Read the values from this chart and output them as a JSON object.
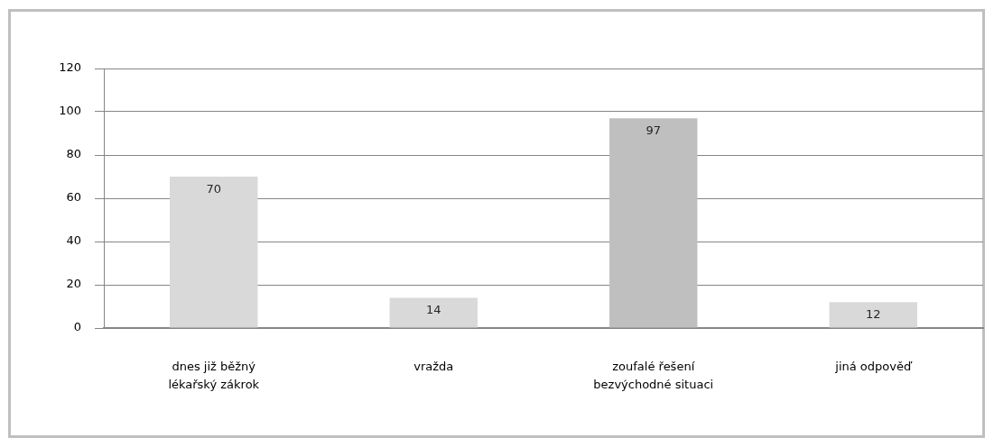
{
  "chart_data": {
    "type": "bar",
    "categories": [
      "dnes již běžný lékařský zákrok",
      "vražda",
      "zoufalé řešení bezvýchodné situaci",
      "jiná odpověď"
    ],
    "values": [
      70,
      14,
      97,
      12
    ],
    "colors": [
      "#d9d9d9",
      "#d9d9d9",
      "#bfbfbf",
      "#d9d9d9"
    ],
    "ylim": [
      0,
      120
    ],
    "yticks": [
      0,
      20,
      40,
      60,
      80,
      100,
      120
    ],
    "grid": "y",
    "data_labels": true
  }
}
